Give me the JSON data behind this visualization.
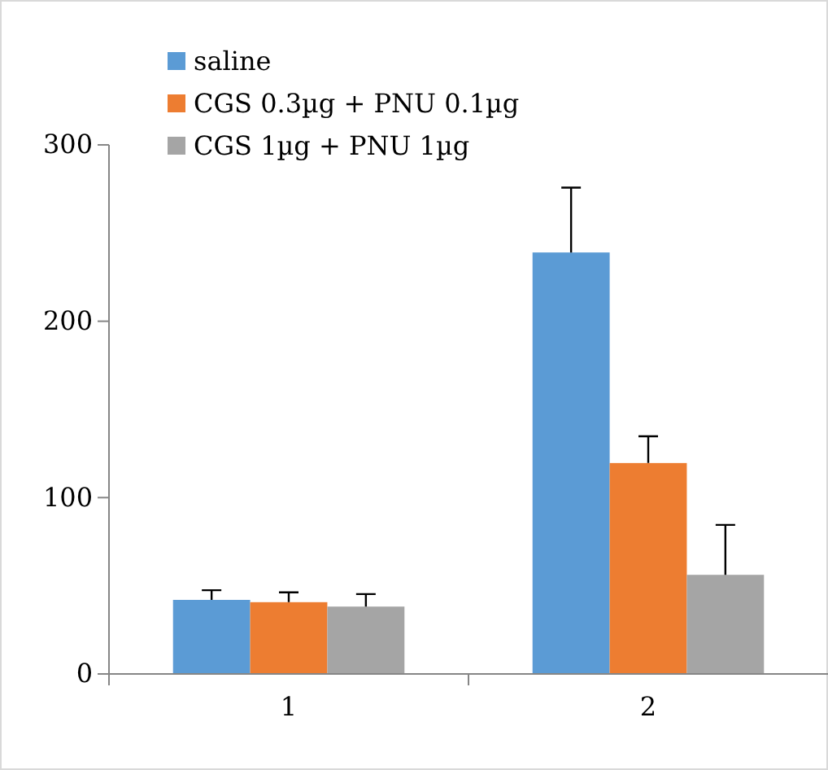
{
  "chart_data": {
    "type": "bar",
    "categories": [
      "1",
      "2"
    ],
    "series": [
      {
        "name": "saline",
        "color": "#5b9bd5",
        "values": [
          42,
          239
        ],
        "errors": [
          [
            42,
            47.5
          ],
          [
            239,
            275.8
          ]
        ]
      },
      {
        "name": "CGS 0.3µg + PNU 0.1µg",
        "color": "#ed7d31",
        "values": [
          40.7,
          119.6
        ],
        "errors": [
          [
            40.7,
            46.3
          ],
          [
            119.6,
            134.8
          ]
        ]
      },
      {
        "name": "CGS 1µg + PNU 1µg",
        "color": "#a5a5a5",
        "values": [
          38.2,
          56.2
        ],
        "errors": [
          [
            38.2,
            45.3
          ],
          [
            56.2,
            84.5
          ]
        ]
      }
    ],
    "ylim": [
      0,
      300
    ],
    "yticks": [
      0,
      100,
      200,
      300
    ],
    "grid": false,
    "legend": "top left"
  }
}
